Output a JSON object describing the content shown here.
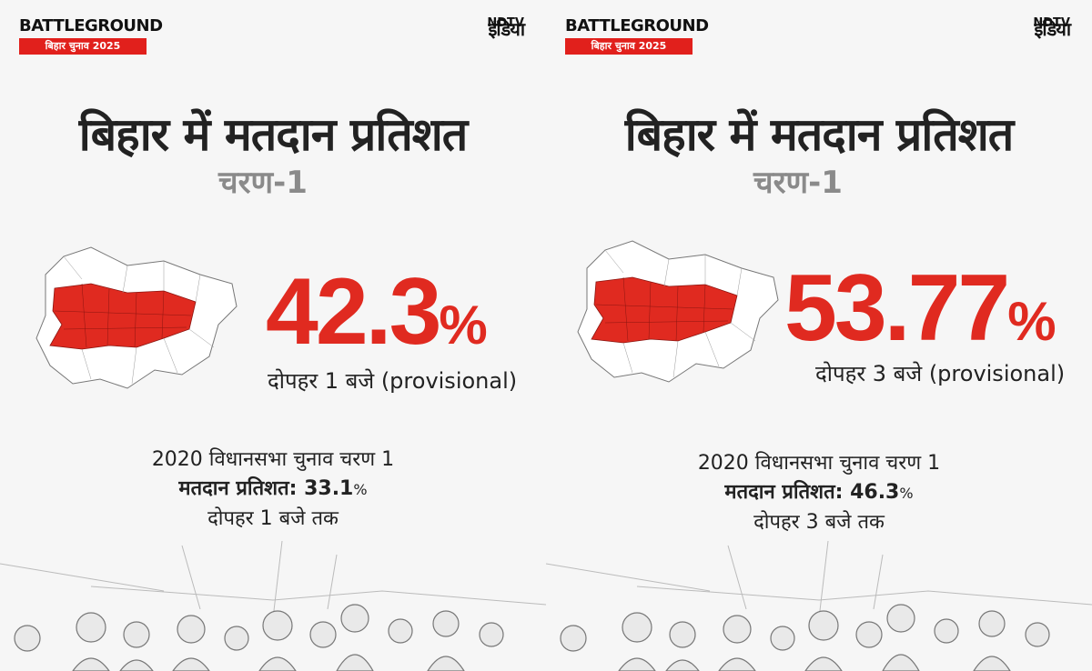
{
  "panels": [
    {
      "brand_title": "BATTLEGROUND",
      "brand_sub": "बिहार चुनाव 2025",
      "logo_small": "NDTV",
      "logo_main": "इंडिया",
      "headline": "बिहार में मतदान प्रतिशत",
      "phase": "चरण-1",
      "turnout_value": "42.3",
      "turnout_unit": "%",
      "turnout_note": "दोपहर 1 बजे (provisional)",
      "prev_line1": "2020 विधानसभा चुनाव चरण 1",
      "prev_label": "मतदान प्रतिशत: 33.1",
      "prev_unit": "%",
      "prev_line3": "दोपहर 1 बजे तक",
      "map_highlight_color": "#e02a20"
    },
    {
      "brand_title": "BATTLEGROUND",
      "brand_sub": "बिहार चुनाव 2025",
      "logo_small": "NDTV",
      "logo_main": "इंडिया",
      "headline": "बिहार में मतदान प्रतिशत",
      "phase": "चरण-1",
      "turnout_value": "53.77",
      "turnout_unit": "%",
      "turnout_note": "दोपहर 3 बजे (provisional)",
      "prev_line1": "2020 विधानसभा चुनाव चरण 1",
      "prev_label": "मतदान प्रतिशत: 46.3",
      "prev_unit": "%",
      "prev_line3": "दोपहर 3 बजे तक",
      "map_highlight_color": "#e02a20"
    }
  ]
}
